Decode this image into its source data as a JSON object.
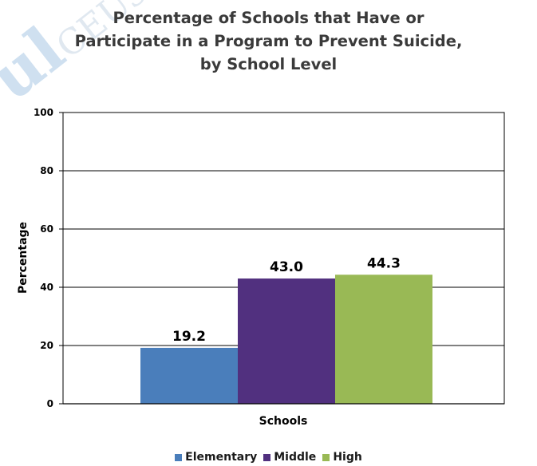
{
  "chart_data": {
    "type": "bar",
    "title_lines": [
      "Percentage of Schools that Have or",
      "Participate in a Program to Prevent Suicide,",
      "by School Level"
    ],
    "xlabel": "Schools",
    "ylabel": "Percentage",
    "ylim": [
      0,
      100
    ],
    "yticks": [
      "0",
      "20",
      "40",
      "60",
      "80",
      "100"
    ],
    "grid": true,
    "legend_position": "bottom",
    "series": [
      {
        "name": "Elementary",
        "value": 19.2,
        "label": "19.2",
        "color": "#4a7ebb"
      },
      {
        "name": "Middle",
        "value": 43.0,
        "label": "43.0",
        "color": "#51307f"
      },
      {
        "name": "High",
        "value": 44.3,
        "label": "44.3",
        "color": "#99b955"
      }
    ]
  },
  "watermark": {
    "big": "ul",
    "small": "CEUs.com"
  }
}
